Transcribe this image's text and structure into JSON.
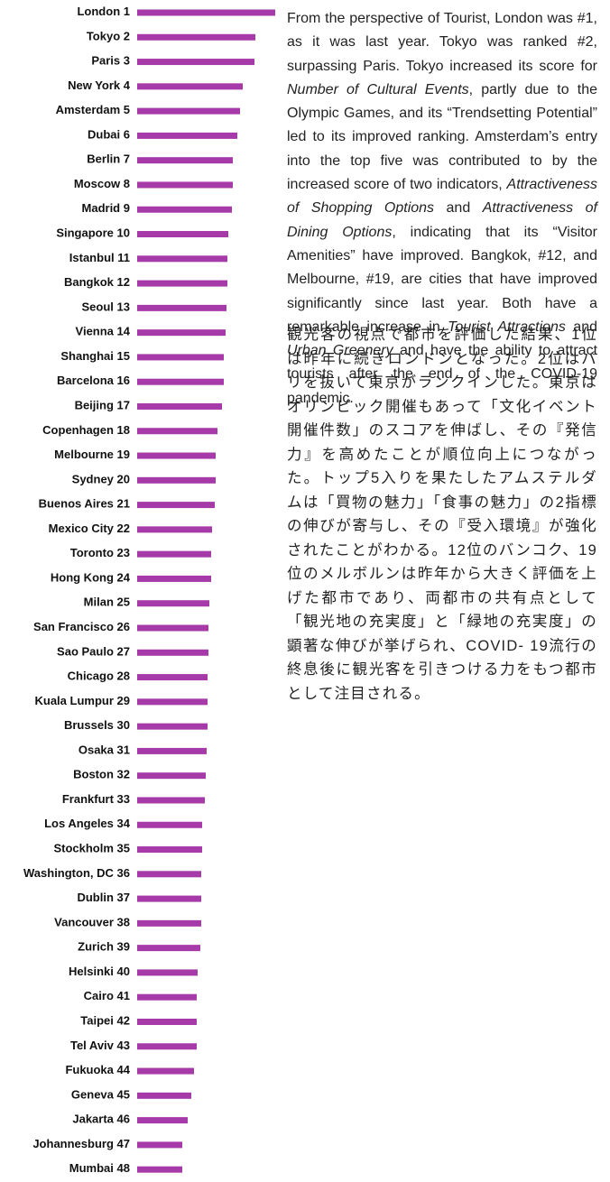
{
  "chart_data": {
    "type": "bar",
    "orientation": "horizontal",
    "color": "#a53aa8",
    "categories": [
      "London",
      "Tokyo",
      "Paris",
      "New York",
      "Amsterdam",
      "Dubai",
      "Berlin",
      "Moscow",
      "Madrid",
      "Singapore",
      "Istanbul",
      "Bangkok",
      "Seoul",
      "Vienna",
      "Shanghai",
      "Barcelona",
      "Beijing",
      "Copenhagen",
      "Melbourne",
      "Sydney",
      "Buenos Aires",
      "Mexico City",
      "Toronto",
      "Hong Kong",
      "Milan",
      "San Francisco",
      "Sao Paulo",
      "Chicago",
      "Kuala Lumpur",
      "Brussels",
      "Osaka",
      "Boston",
      "Frankfurt",
      "Los Angeles",
      "Stockholm",
      "Washington, DC",
      "Dublin",
      "Vancouver",
      "Zurich",
      "Helsinki",
      "Cairo",
      "Taipei",
      "Tel Aviv",
      "Fukuoka",
      "Geneva",
      "Jakarta",
      "Johannesburg",
      "Mumbai"
    ],
    "ranks": [
      1,
      2,
      3,
      4,
      5,
      6,
      7,
      8,
      9,
      10,
      11,
      12,
      13,
      14,
      15,
      16,
      17,
      18,
      19,
      20,
      21,
      22,
      23,
      24,
      25,
      26,
      27,
      28,
      29,
      30,
      31,
      32,
      33,
      34,
      35,
      36,
      37,
      38,
      39,
      40,
      41,
      42,
      43,
      44,
      45,
      46,
      47,
      48
    ],
    "values": [
      153,
      131,
      130,
      117,
      114,
      111,
      106,
      106,
      105,
      101,
      100,
      100,
      99,
      98,
      96,
      96,
      94,
      89,
      87,
      87,
      86,
      83,
      82,
      82,
      80,
      79,
      79,
      78,
      78,
      78,
      77,
      76,
      75,
      72,
      72,
      71,
      71,
      71,
      70,
      67,
      66,
      66,
      66,
      63,
      60,
      56,
      50,
      50
    ]
  },
  "text": {
    "english": [
      {
        "text": "From the perspective of Tourist, London was #1, as it was last year. Tokyo was ranked #2, surpassing Paris. Tokyo increased its score for "
      },
      {
        "text": "Number of Cultural Events",
        "italic": true
      },
      {
        "text": ", partly due to the Olympic Games, and its “Trendsetting Potential” led to its improved ranking. Amsterdam’s entry into the top five was contributed to by the increased score of two indicators, "
      },
      {
        "text": "Attractiveness of Shopping Options",
        "italic": true
      },
      {
        "text": " and "
      },
      {
        "text": "Attractiveness of Dining Options",
        "italic": true
      },
      {
        "text": ", indicating that its “Visitor Amenities” have improved. Bangkok, #12, and Melbourne, #19, are cities that have improved significantly since last year. Both have a remarkable increase in "
      },
      {
        "text": "Tourist Attractions",
        "italic": true
      },
      {
        "text": " and "
      },
      {
        "text": "Urban Greenery",
        "italic": true
      },
      {
        "text": " and have the ability to attract tourists after the end of the COVID-19 pandemic."
      }
    ],
    "japanese": "観光客の視点で都市を評価した結果、1位は昨年に続きロンドンとなった。2位はパリを抜いて東京がランクインした。東京はオリンピック開催もあって「文化イベント開催件数」のスコアを伸ばし、その『発信力』を高めたことが順位向上につながった。トップ5入りを果たしたアムステルダムは「買物の魅力」「食事の魅力」の2指標の伸びが寄与し、その『受入環境』が強化されたことがわかる。12位のバンコク、19位のメルボルンは昨年から大きく評価を上げた都市であり、両都市の共有点として「観光地の充実度」と「緑地の充実度」の顕著な伸びが挙げられ、COVID- 19流行の終息後に観光客を引きつける力をもつ都市として注目される。"
  }
}
